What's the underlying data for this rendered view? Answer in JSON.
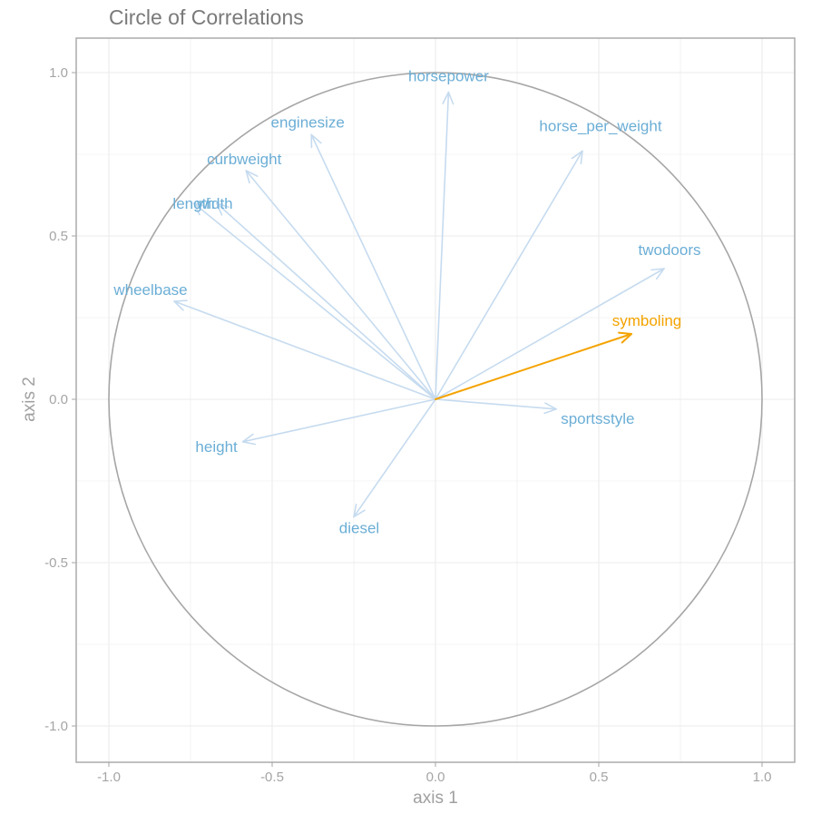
{
  "chart_data": {
    "type": "scatter",
    "title": "Circle of Correlations",
    "xlabel": "axis 1",
    "ylabel": "axis 2",
    "xlim": [
      -1.1,
      1.1
    ],
    "ylim": [
      -1.1,
      1.1
    ],
    "x_ticks": [
      "-1.0",
      "-0.5",
      "0.0",
      "0.5",
      "1.0"
    ],
    "y_ticks": [
      "-1.0",
      "-0.5",
      "0.0",
      "0.5",
      "1.0"
    ],
    "grid": true,
    "unit_circle": true,
    "colors": {
      "active": "#6BAED6",
      "active_arrow": "#C6DBEF",
      "supplementary": "#F4A300",
      "circle": "#A6A6A6",
      "grid": "#EBEBEB",
      "panel_border": "#A6A6A6"
    },
    "vectors": [
      {
        "label": "horsepower",
        "x": 0.04,
        "y": 0.94,
        "type": "active"
      },
      {
        "label": "enginesize",
        "x": -0.38,
        "y": 0.81,
        "type": "active"
      },
      {
        "label": "horse_per_weight",
        "x": 0.45,
        "y": 0.76,
        "type": "active"
      },
      {
        "label": "curbweight",
        "x": -0.58,
        "y": 0.7,
        "type": "active"
      },
      {
        "label": "length",
        "x": -0.74,
        "y": 0.6,
        "type": "active"
      },
      {
        "label": "width",
        "x": -0.67,
        "y": 0.6,
        "type": "active"
      },
      {
        "label": "twodoors",
        "x": 0.7,
        "y": 0.4,
        "type": "active"
      },
      {
        "label": "wheelbase",
        "x": -0.8,
        "y": 0.3,
        "type": "active"
      },
      {
        "label": "sportsstyle",
        "x": 0.37,
        "y": -0.03,
        "type": "active"
      },
      {
        "label": "height",
        "x": -0.59,
        "y": -0.13,
        "type": "active"
      },
      {
        "label": "diesel",
        "x": -0.25,
        "y": -0.36,
        "type": "active"
      },
      {
        "label": "symboling",
        "x": 0.6,
        "y": 0.2,
        "type": "supplementary"
      }
    ]
  }
}
